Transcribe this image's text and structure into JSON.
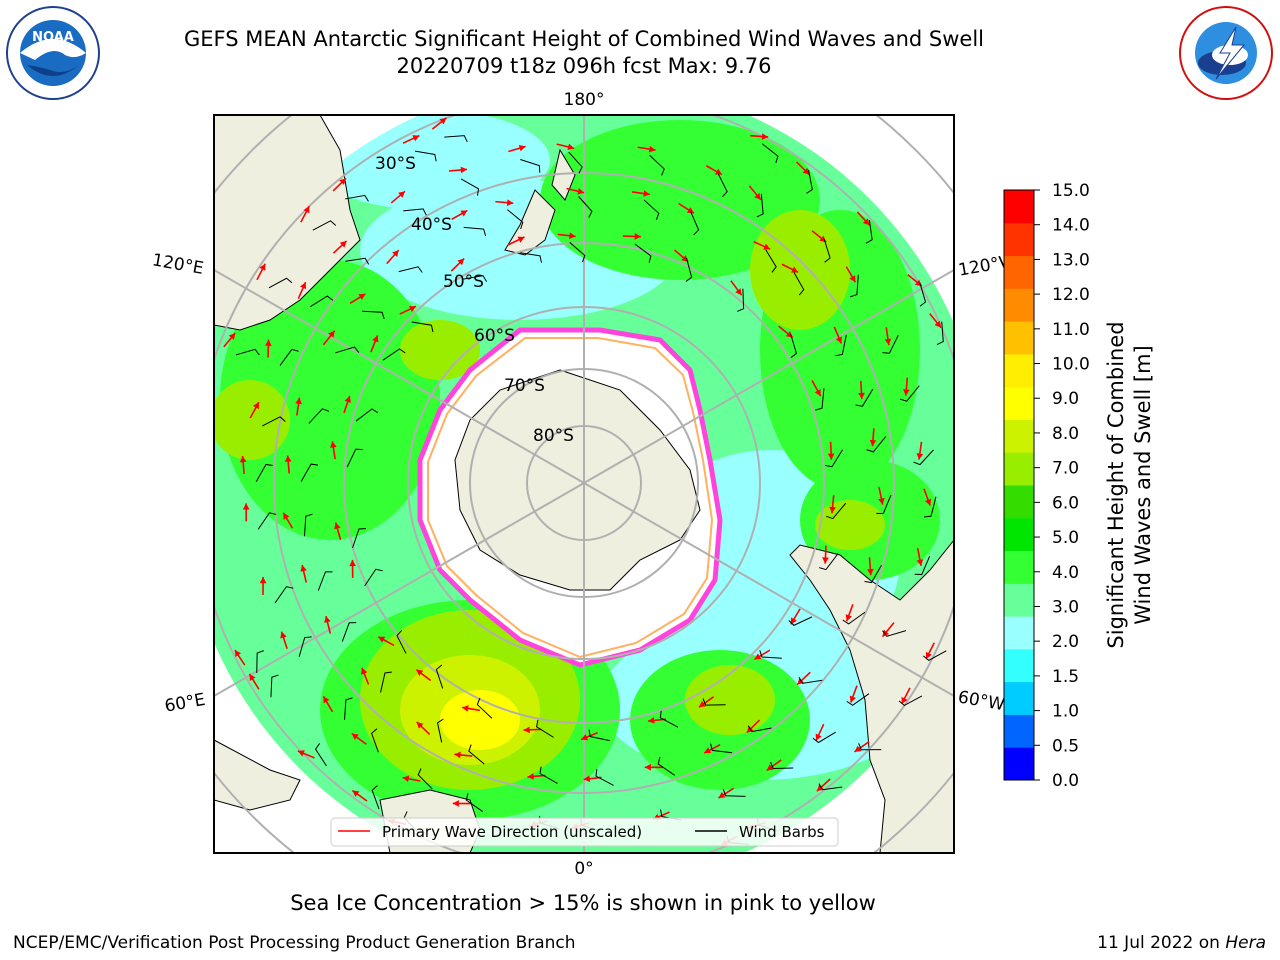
{
  "title_line1": "GEFS MEAN Antarctic Significant Height of Combined Wind Waves and Swell",
  "title_line2": "20220709 t18z 096h fcst   Max: 9.76",
  "logo_left": "noaa-logo",
  "logo_right": "national-weather-service-logo",
  "map": {
    "projection": "south-polar-stereographic",
    "lat_labels": [
      "30°S",
      "40°S",
      "50°S",
      "60°S",
      "70°S",
      "80°S"
    ],
    "lon_labels": {
      "top": "180°",
      "upper_left": "120°E",
      "upper_right": "120°W",
      "lower_left": "60°E",
      "lower_right": "60°W",
      "bottom": "0°"
    }
  },
  "legend": {
    "items": [
      {
        "label": "Primary Wave Direction (unscaled)",
        "color": "#ff0000"
      },
      {
        "label": "Wind Barbs",
        "color": "#000000"
      }
    ]
  },
  "colorbar": {
    "label_line1": "Significant Height of Combined",
    "label_line2": "Wind Waves and Swell [m]",
    "ticks": [
      "0.0",
      "0.5",
      "1.0",
      "1.5",
      "2.0",
      "3.0",
      "4.0",
      "5.0",
      "6.0",
      "7.0",
      "8.0",
      "9.0",
      "10.0",
      "11.0",
      "12.0",
      "13.0",
      "14.0",
      "15.0"
    ],
    "colors": [
      "#0000ff",
      "#0066ff",
      "#00ccff",
      "#33ffff",
      "#99ffff",
      "#66ff99",
      "#33ff33",
      "#00e600",
      "#33dd00",
      "#99ee00",
      "#ccf200",
      "#ffff00",
      "#ffee00",
      "#ffc000",
      "#ff8c00",
      "#ff6600",
      "#ff3300",
      "#ff0000"
    ]
  },
  "note": "Sea Ice Concentration > 15% is shown in pink to yellow",
  "footer_left": "NCEP/EMC/Verification Post Processing Product Generation Branch",
  "footer_right_date": "11 Jul 2022 on",
  "footer_right_host": "Hera"
}
